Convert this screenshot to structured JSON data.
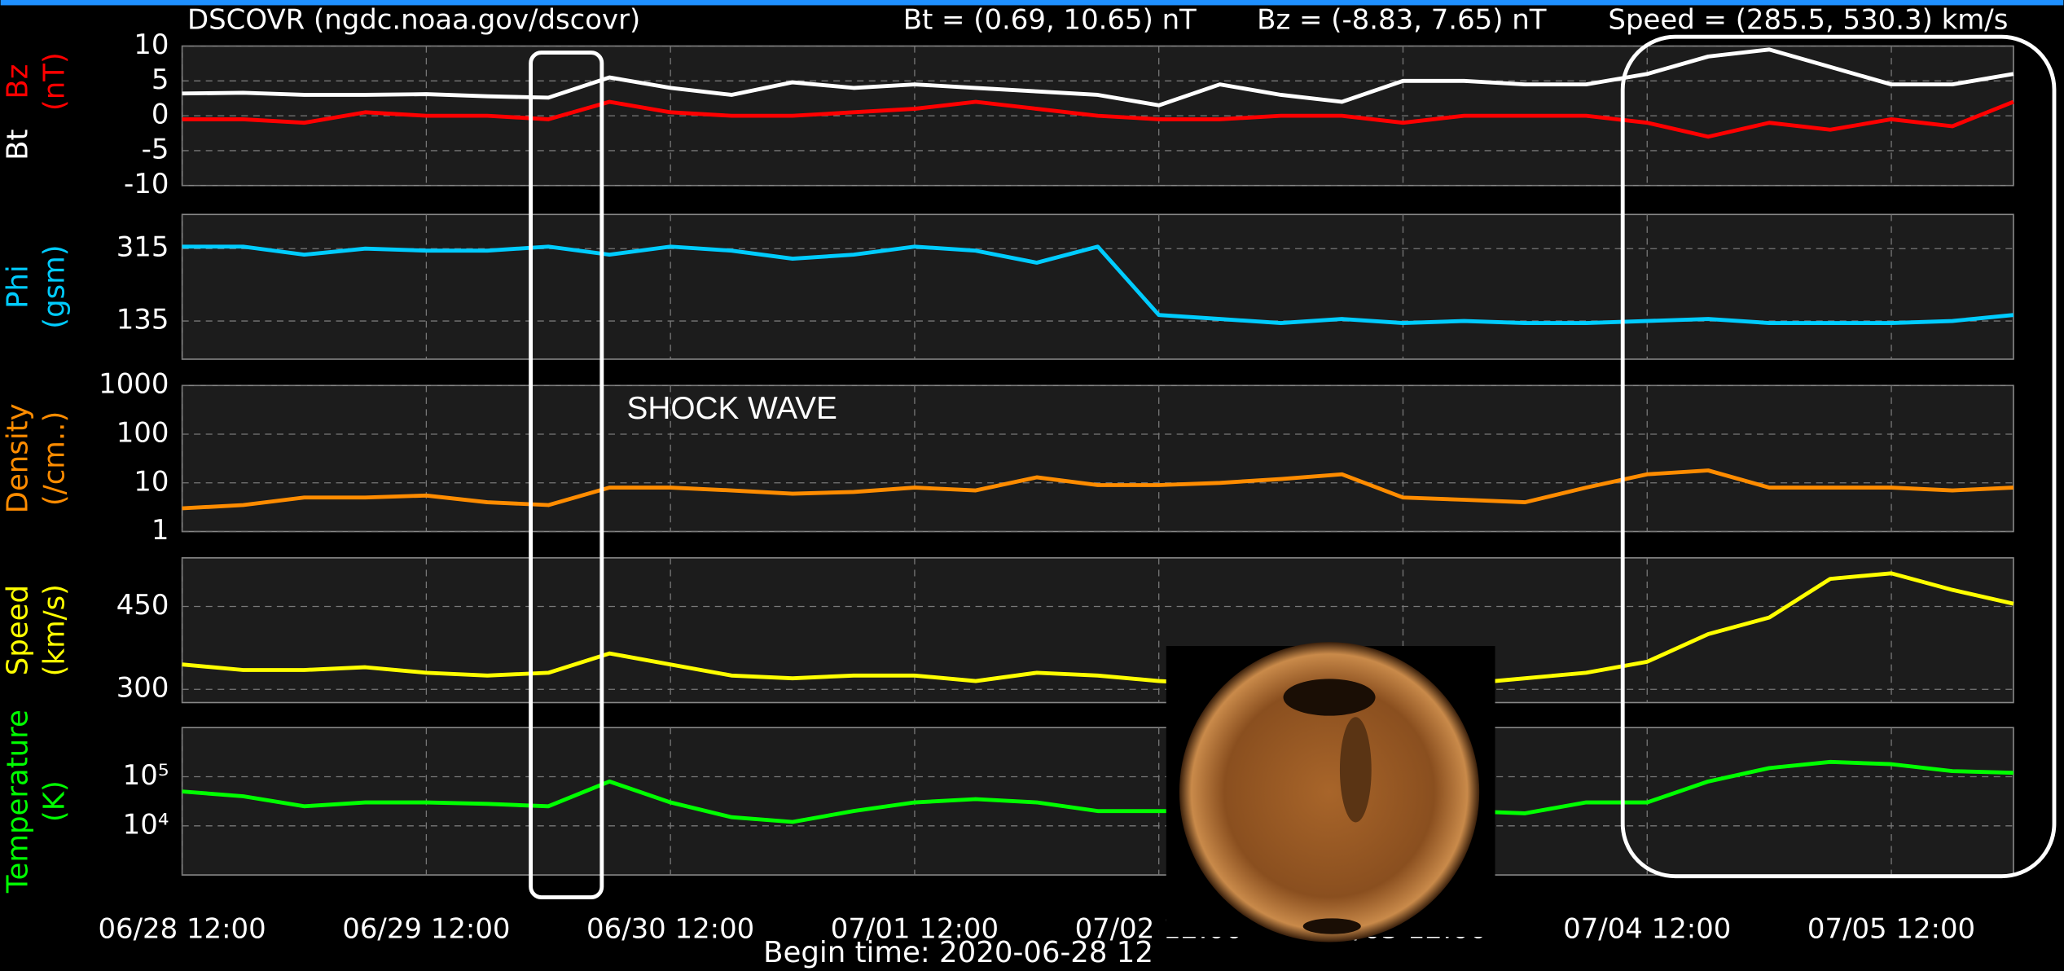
{
  "header": {
    "title": "DSCOVR (ngdc.noaa.gov/dscovr)",
    "bt_range": "Bt = (0.69, 10.65) nT",
    "bz_range": "Bz = (-8.83, 7.65) nT",
    "speed_range": "Speed = (285.5, 530.3) km/s"
  },
  "begin_time": "Begin time: 2020-06-28 12",
  "annotation": "SHOCK WAVE",
  "chart_data": [
    {
      "type": "line",
      "ylabel": "(nT)",
      "xlim": [
        0,
        180
      ],
      "ylim": [
        -10,
        10
      ],
      "yticks": [
        10,
        5,
        0,
        -5,
        -10
      ],
      "grid": true,
      "x": [
        0,
        6,
        12,
        18,
        24,
        30,
        36,
        42,
        48,
        54,
        60,
        66,
        72,
        78,
        84,
        90,
        96,
        102,
        108,
        114,
        120,
        126,
        132,
        138,
        144,
        150,
        156,
        162,
        168,
        174,
        180
      ],
      "series": [
        {
          "name": "Bt",
          "color": "#ffffff",
          "values": [
            3.2,
            3.3,
            3.0,
            3.0,
            3.1,
            2.8,
            2.6,
            5.5,
            4.0,
            3.0,
            4.8,
            4.0,
            4.5,
            4.0,
            3.5,
            3.0,
            1.5,
            4.5,
            3.0,
            2.0,
            5.0,
            5.0,
            4.5,
            4.5,
            6.0,
            8.5,
            9.5,
            7.0,
            4.5,
            4.5,
            6.0
          ]
        },
        {
          "name": "Bz",
          "color": "#ff0000",
          "values": [
            -0.5,
            -0.5,
            -1,
            0.5,
            0,
            0,
            -0.5,
            2,
            0.5,
            0,
            0,
            0.5,
            1,
            2,
            1,
            0,
            -0.5,
            -0.5,
            0,
            0,
            -1,
            0,
            0,
            0,
            -1,
            -3,
            -1,
            -2,
            -0.5,
            -1.5,
            2
          ]
        }
      ]
    },
    {
      "type": "line",
      "ylabel": [
        "Phi",
        "(gsm)"
      ],
      "xlim": [
        0,
        180
      ],
      "ylim": [
        40,
        400
      ],
      "yticks": [
        315,
        135
      ],
      "grid": true,
      "x": [
        0,
        6,
        12,
        18,
        24,
        30,
        36,
        42,
        48,
        54,
        60,
        66,
        72,
        78,
        84,
        90,
        96,
        102,
        108,
        114,
        120,
        126,
        132,
        138,
        144,
        150,
        156,
        162,
        168,
        174,
        180
      ],
      "series": [
        {
          "color": "#00ccff",
          "values": [
            320,
            320,
            300,
            315,
            310,
            310,
            320,
            300,
            320,
            310,
            290,
            300,
            320,
            310,
            280,
            320,
            150,
            140,
            130,
            140,
            130,
            135,
            130,
            130,
            135,
            140,
            130,
            130,
            130,
            135,
            150
          ]
        }
      ]
    },
    {
      "type": "line",
      "ylabel": [
        "Density",
        "(/cm..)"
      ],
      "log": true,
      "xlim": [
        0,
        180
      ],
      "ylim": [
        1,
        1000
      ],
      "yticks": [
        1000,
        100,
        10,
        1
      ],
      "grid": true,
      "x": [
        0,
        6,
        12,
        18,
        24,
        30,
        36,
        42,
        48,
        54,
        60,
        66,
        72,
        78,
        84,
        90,
        96,
        102,
        108,
        114,
        120,
        126,
        132,
        138,
        144,
        150,
        156,
        162,
        168,
        174,
        180
      ],
      "series": [
        {
          "color": "#ff8c00",
          "values": [
            3,
            3.5,
            5,
            5,
            5.5,
            4,
            3.5,
            8,
            8,
            7,
            6,
            6.5,
            8,
            7,
            13,
            9,
            9,
            10,
            12,
            15,
            5,
            4.5,
            4,
            8,
            15,
            18,
            8,
            8,
            8,
            7,
            8
          ]
        }
      ]
    },
    {
      "type": "line",
      "ylabel": [
        "Speed",
        "(km/s)"
      ],
      "xlim": [
        0,
        180
      ],
      "ylim": [
        276,
        538
      ],
      "yticks": [
        450,
        300
      ],
      "grid": true,
      "x": [
        0,
        6,
        12,
        18,
        24,
        30,
        36,
        42,
        48,
        54,
        60,
        66,
        72,
        78,
        84,
        90,
        96,
        102,
        108,
        114,
        120,
        126,
        132,
        138,
        144,
        150,
        156,
        162,
        168,
        174,
        180
      ],
      "series": [
        {
          "color": "#ffff00",
          "values": [
            345,
            335,
            335,
            340,
            330,
            325,
            330,
            365,
            345,
            325,
            320,
            325,
            325,
            315,
            330,
            325,
            315,
            310,
            310,
            310,
            305,
            310,
            320,
            330,
            350,
            400,
            430,
            500,
            510,
            480,
            455
          ]
        }
      ]
    },
    {
      "type": "line",
      "ylabel": [
        "Temperature",
        "(K)"
      ],
      "log": true,
      "xlim": [
        0,
        180
      ],
      "ylim": [
        1000,
        1000000
      ],
      "yticks": [
        {
          "value": 100000,
          "label": "10⁵"
        },
        {
          "value": 10000,
          "label": "10⁴"
        }
      ],
      "grid": true,
      "xticks": [
        {
          "value": 0,
          "label": "06/28 12:00"
        },
        {
          "value": 24,
          "label": "06/29 12:00"
        },
        {
          "value": 48,
          "label": "06/30 12:00"
        },
        {
          "value": 72,
          "label": "07/01 12:00"
        },
        {
          "value": 96,
          "label": "07/02 12:00"
        },
        {
          "value": 120,
          "label": "07/03 12:00"
        },
        {
          "value": 144,
          "label": "07/04 12:00"
        },
        {
          "value": 168,
          "label": "07/05 12:00"
        }
      ],
      "x": [
        0,
        6,
        12,
        18,
        24,
        30,
        36,
        42,
        48,
        54,
        60,
        66,
        72,
        78,
        84,
        90,
        96,
        102,
        108,
        114,
        120,
        126,
        132,
        138,
        144,
        150,
        156,
        162,
        168,
        174,
        180
      ],
      "series": [
        {
          "color": "#00ff00",
          "values": [
            50000,
            40000,
            25000,
            30000,
            30000,
            28000,
            25000,
            80000,
            30000,
            15000,
            12000,
            20000,
            30000,
            35000,
            30000,
            20000,
            20000,
            20000,
            20000,
            18000,
            15000,
            20000,
            18000,
            30000,
            30000,
            80000,
            150000,
            200000,
            180000,
            130000,
            120000
          ]
        }
      ]
    }
  ]
}
